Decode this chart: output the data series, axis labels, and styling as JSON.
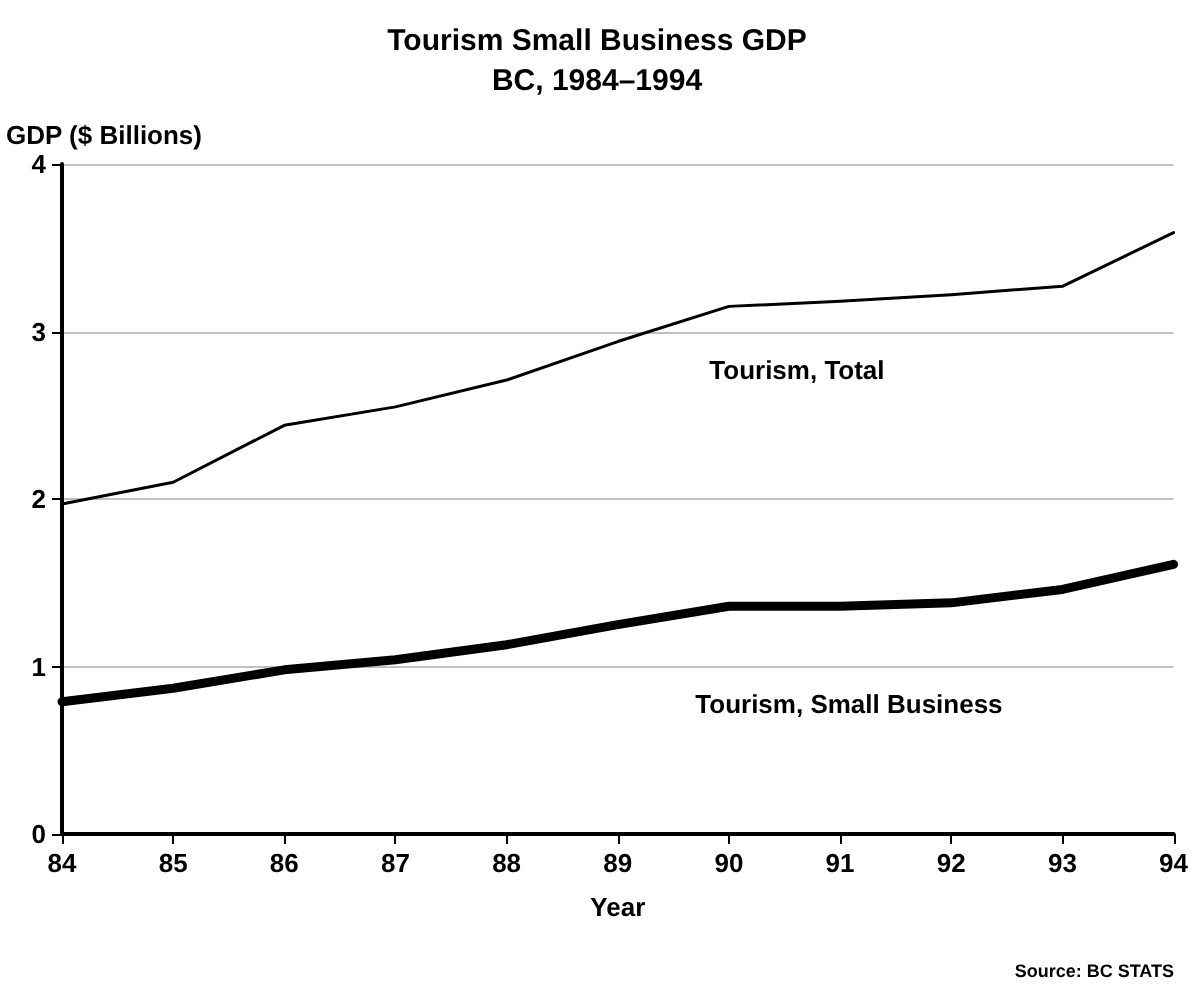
{
  "chart_data": {
    "type": "line",
    "title": "Tourism Small Business GDP",
    "subtitle": "BC, 1984–1994",
    "xlabel": "Year",
    "ylabel": "GDP ($ Billions)",
    "x": [
      84,
      85,
      86,
      87,
      88,
      89,
      90,
      91,
      92,
      93,
      94
    ],
    "series": [
      {
        "name": "Tourism, Total",
        "color": "#000000",
        "values": [
          1.97,
          2.1,
          2.44,
          2.55,
          2.71,
          2.94,
          3.15,
          3.18,
          3.22,
          3.27,
          3.59
        ]
      },
      {
        "name": "Tourism, Small Business",
        "color": "#000000",
        "values": [
          0.79,
          0.87,
          0.98,
          1.04,
          1.13,
          1.25,
          1.36,
          1.36,
          1.38,
          1.46,
          1.61
        ]
      }
    ],
    "xlim": [
      84,
      94
    ],
    "xticks": [
      84,
      85,
      86,
      87,
      88,
      89,
      90,
      91,
      92,
      93,
      94
    ],
    "ylim": [
      0,
      4
    ],
    "yticks": [
      0,
      1,
      2,
      3,
      4
    ],
    "grid": "y",
    "legend": false,
    "marker": "none",
    "line_style": "solid",
    "annotations": [
      "Source: BC STATS"
    ]
  }
}
